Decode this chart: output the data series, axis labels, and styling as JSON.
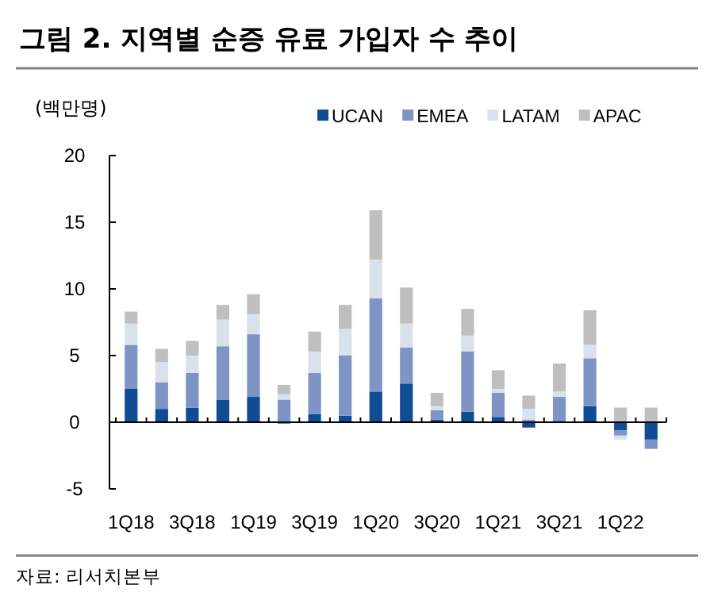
{
  "chart_data": {
    "type": "bar",
    "stacked": true,
    "title": "그림 2. 지역별 순증 유료 가입자 수 추이",
    "ylabel": "(백만명)",
    "categories": [
      "1Q18",
      null,
      "3Q18",
      null,
      "1Q19",
      null,
      "3Q19",
      null,
      "1Q20",
      null,
      "3Q20",
      null,
      "1Q21",
      null,
      "3Q21",
      null,
      "1Q22",
      null
    ],
    "series": [
      {
        "name": "UCAN",
        "color": "#0f4c93",
        "values": [
          2.5,
          1.0,
          1.1,
          1.7,
          1.9,
          -0.1,
          0.6,
          0.5,
          2.3,
          2.9,
          0.2,
          0.8,
          0.4,
          -0.4,
          0.1,
          1.2,
          -0.6,
          -1.3
        ]
      },
      {
        "name": "EMEA",
        "color": "#7e94c4",
        "values": [
          3.3,
          2.0,
          2.6,
          4.0,
          4.7,
          1.7,
          3.1,
          4.5,
          7.0,
          2.7,
          0.7,
          4.5,
          1.8,
          0.2,
          1.8,
          3.6,
          -0.4,
          -0.7
        ]
      },
      {
        "name": "LATAM",
        "color": "#d9e1ea",
        "values": [
          1.6,
          1.5,
          1.3,
          2.0,
          1.5,
          0.4,
          1.6,
          2.0,
          2.9,
          1.8,
          0.3,
          1.2,
          0.3,
          0.8,
          0.4,
          1.0,
          -0.3,
          0.0
        ]
      },
      {
        "name": "APAC",
        "color": "#bfbfbf",
        "values": [
          0.9,
          1.0,
          1.1,
          1.1,
          1.5,
          0.7,
          1.5,
          1.8,
          3.7,
          2.7,
          1.0,
          2.0,
          1.4,
          1.0,
          2.1,
          2.6,
          1.1,
          1.1
        ]
      }
    ],
    "ylim": [
      -5,
      20
    ],
    "yticks": [
      -5,
      0,
      5,
      10,
      15,
      20
    ],
    "legend": "top right",
    "annotations": [
      "자료: 리서치본부"
    ]
  }
}
